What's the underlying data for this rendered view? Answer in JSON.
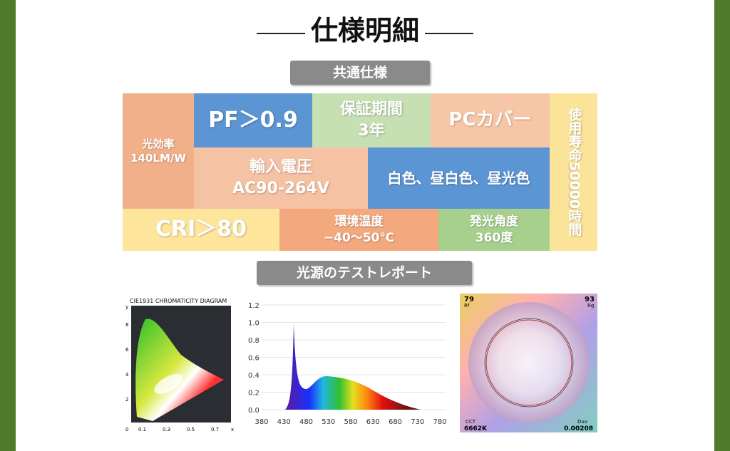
{
  "header": {
    "title": "仕様明細"
  },
  "sections": [
    "共通仕様",
    "光源のテストレポート"
  ],
  "tiles": [
    {
      "lines": [
        "光効率",
        "140LM/W"
      ]
    },
    {
      "lines": [
        "PF＞0.9"
      ]
    },
    {
      "lines": [
        "保証期間",
        "3年"
      ]
    },
    {
      "lines": [
        "PCカバー"
      ]
    },
    {
      "lines": [
        "使用寿命",
        "50000時間"
      ]
    },
    {
      "lines": [
        "輸入電圧",
        "AC90-264V"
      ]
    },
    {
      "lines": [
        "白色、昼白色、昼光色"
      ]
    },
    {
      "lines": [
        "CRI＞80"
      ]
    },
    {
      "lines": [
        "環境温度",
        "−40～50℃"
      ]
    },
    {
      "lines": [
        "発光角度",
        "360度"
      ]
    }
  ],
  "cie": {
    "title": "CIE1931 CHROMATICITY DIAGRAM",
    "y_label": "y",
    "x_label": "x",
    "yticks": [
      "8",
      "6",
      "4",
      "2"
    ],
    "xticks": [
      "0",
      "0.1",
      "0.3",
      "0.5",
      "0.7"
    ]
  },
  "spectrum": {
    "yticks": [
      "1.2",
      "1.0",
      "0.8",
      "0.6",
      "0.4",
      "0.2",
      "0.0"
    ],
    "xticks": [
      "380",
      "430",
      "480",
      "530",
      "580",
      "630",
      "680",
      "730",
      "780"
    ]
  },
  "tm30": {
    "rf": "79",
    "rf_label": "Rf",
    "rg": "93",
    "rg_label": "Rg",
    "cct_label": "CCT",
    "cct": "6662K",
    "duv_label": "Duv",
    "duv": "0.00208"
  }
}
